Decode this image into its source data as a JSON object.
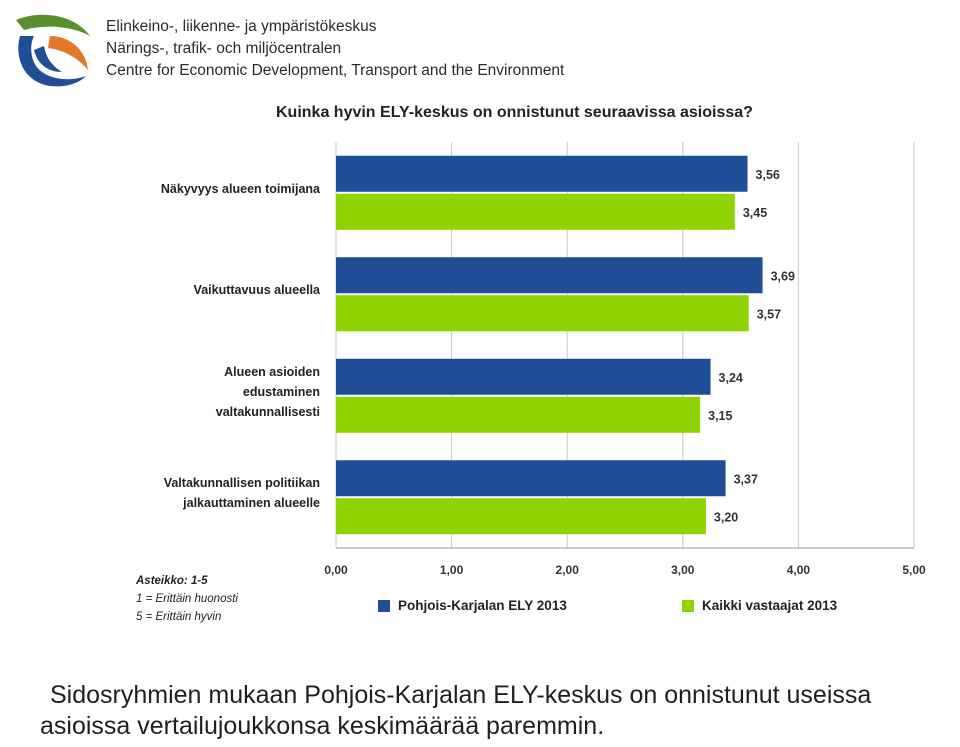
{
  "header": {
    "org_lines": [
      "Elinkeino-, liikenne- ja ympäristökeskus",
      "Närings-, trafik- och miljöcentralen",
      "Centre for Economic Development, Transport and the Environment"
    ],
    "logo_icon": "ely-logo-icon",
    "logo_colors": [
      "#5a8f2e",
      "#e2782a",
      "#1f4e96"
    ]
  },
  "chart_data": {
    "type": "bar",
    "orientation": "horizontal",
    "title": "Kuinka hyvin ELY-keskus on onnistunut seuraavissa asioissa?",
    "categories": [
      "Näkyvyys alueen toimijana",
      "Vaikuttavuus alueella",
      "Alueen asioiden edustaminen valtakunnallisesti",
      "Valtakunnallisen politiikan jalkauttaminen alueelle"
    ],
    "category_label_lines": [
      [
        "Näkyvyys alueen toimijana"
      ],
      [
        "Vaikuttavuus alueella"
      ],
      [
        "Alueen asioiden",
        "edustaminen",
        "valtakunnallisesti"
      ],
      [
        "Valtakunnallisen politiikan",
        "jalkauttaminen alueelle"
      ]
    ],
    "series": [
      {
        "name": "Pohjois-Karjalan ELY 2013",
        "color": "#1f4e96",
        "values": [
          3.56,
          3.69,
          3.24,
          3.37
        ],
        "labels": [
          "3,56",
          "3,69",
          "3,24",
          "3,37"
        ]
      },
      {
        "name": "Kaikki vastaajat 2013",
        "color": "#8fd400",
        "values": [
          3.45,
          3.57,
          3.15,
          3.2
        ],
        "labels": [
          "3,45",
          "3,57",
          "3,15",
          "3,20"
        ]
      }
    ],
    "xlim": [
      0,
      5
    ],
    "xticks": [
      0,
      1,
      2,
      3,
      4,
      5
    ],
    "xtick_labels": [
      "0,00",
      "1,00",
      "2,00",
      "3,00",
      "4,00",
      "5,00"
    ],
    "grid": true,
    "legend_position": "bottom"
  },
  "scale_note": {
    "heading": "Asteikko: 1-5",
    "lines": [
      "1 = Erittäin huonosti",
      "5 = Erittäin hyvin"
    ]
  },
  "caption": {
    "line1": "Sidosryhmien mukaan Pohjois-Karjalan ELY-keskus on onnistunut useissa",
    "line2": "asioissa vertailujoukkonsa keskimäärää paremmin."
  }
}
